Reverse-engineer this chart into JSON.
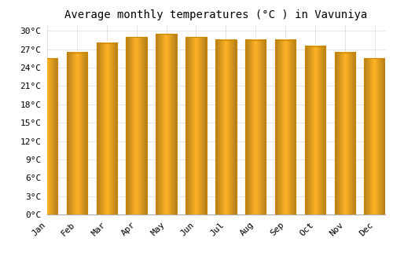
{
  "title": "Average monthly temperatures (°C ) in Vavuniya",
  "months": [
    "Jan",
    "Feb",
    "Mar",
    "Apr",
    "May",
    "Jun",
    "Jul",
    "Aug",
    "Sep",
    "Oct",
    "Nov",
    "Dec"
  ],
  "temperatures": [
    25.5,
    26.5,
    28.0,
    29.0,
    29.5,
    29.0,
    28.5,
    28.5,
    28.5,
    27.5,
    26.5,
    25.5
  ],
  "bar_color": "#FFA500",
  "bar_edge_color": "#CC8800",
  "ylim": [
    0,
    31
  ],
  "yticks": [
    0,
    3,
    6,
    9,
    12,
    15,
    18,
    21,
    24,
    27,
    30
  ],
  "ytick_labels": [
    "0°C",
    "3°C",
    "6°C",
    "9°C",
    "12°C",
    "15°C",
    "18°C",
    "21°C",
    "24°C",
    "27°C",
    "30°C"
  ],
  "background_color": "#FFFFFF",
  "grid_color": "#E0E0E0",
  "title_fontsize": 10,
  "tick_fontsize": 8,
  "font_family": "monospace"
}
